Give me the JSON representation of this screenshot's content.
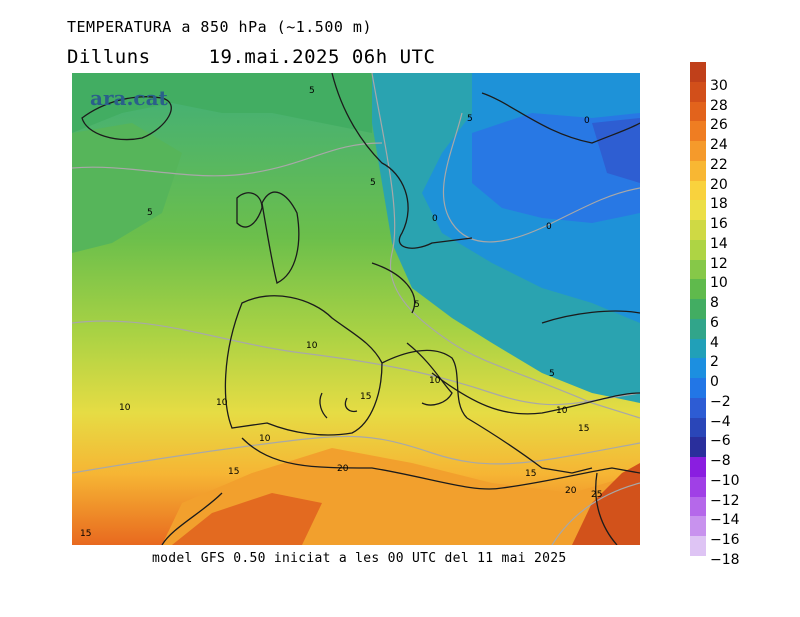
{
  "title_line1": "TEMPERATURA a 850 hPa (~1.500 m)",
  "title_day": "Dilluns",
  "title_datetime": "19.mai.2025 06h UTC",
  "brand": "ara.cat",
  "footer": "model GFS 0.50 iniciat a les 00 UTC del 11 mai 2025",
  "legend": {
    "labels": [
      "30",
      "28",
      "26",
      "24",
      "22",
      "20",
      "18",
      "16",
      "14",
      "12",
      "10",
      "8",
      "6",
      "4",
      "2",
      "0",
      "-2",
      "-4",
      "-6",
      "-8",
      "-10",
      "-12",
      "-14",
      "-16",
      "-18"
    ],
    "colors": [
      "#c0401a",
      "#d24f1a",
      "#e2631c",
      "#ef7d22",
      "#f59a2b",
      "#f8b733",
      "#f9d23d",
      "#ecdf46",
      "#cfd944",
      "#aed444",
      "#86c848",
      "#5fba4c",
      "#42ad62",
      "#31a58a",
      "#21a0b8",
      "#1c8fe0",
      "#2276e6",
      "#2d5cd4",
      "#2a46b8",
      "#2a2f9c",
      "#8a1ee0",
      "#a040e6",
      "#b568ea",
      "#c892ee",
      "#dec4f4"
    ]
  },
  "contour_labels": [
    "5",
    "5",
    "0",
    "5",
    "5",
    "0",
    "0",
    "5",
    "10",
    "10",
    "10",
    "15",
    "10",
    "5",
    "10",
    "15",
    "10",
    "20",
    "15",
    "15",
    "20",
    "25",
    "15"
  ]
}
